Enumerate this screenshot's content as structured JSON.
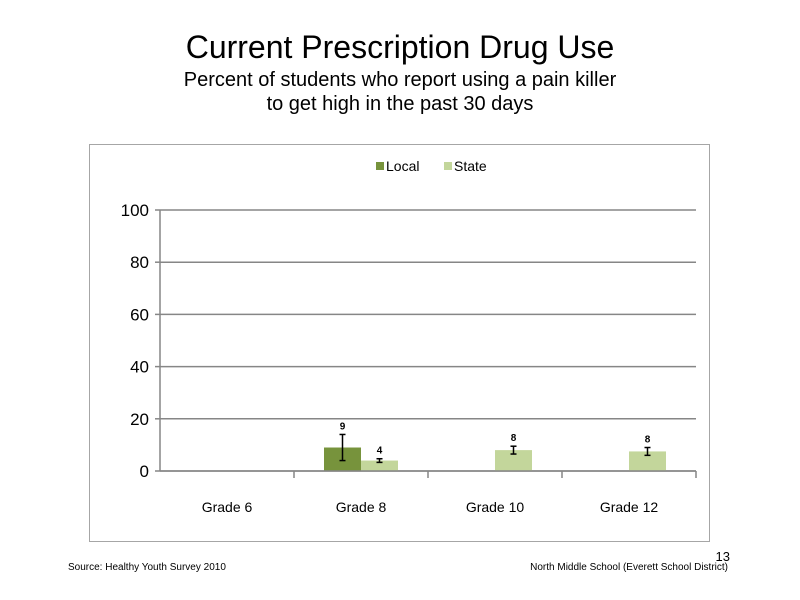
{
  "slide": {
    "title": "Current Prescription Drug Use",
    "subtitle_line1": "Percent of students who report using a pain killer",
    "subtitle_line2": "to get high in the past 30 days",
    "source": "Source: Healthy Youth Survey 2010",
    "school": "North Middle  School (Everett School District)",
    "page_number": "13"
  },
  "chart_data": {
    "type": "bar",
    "categories": [
      "Grade 6",
      "Grade 8",
      "Grade 10",
      "Grade 12"
    ],
    "series": [
      {
        "name": "Local",
        "color": "#77933c",
        "values": [
          null,
          9,
          null,
          null
        ],
        "labels": [
          null,
          "9",
          null,
          null
        ],
        "error": [
          null,
          5,
          null,
          null
        ]
      },
      {
        "name": "State",
        "color": "#c3d69b",
        "values": [
          null,
          4,
          8,
          7.5
        ],
        "labels": [
          null,
          "4",
          "8",
          "8"
        ],
        "error": [
          null,
          0.7,
          1.5,
          1.5
        ]
      }
    ],
    "ylim": [
      0,
      100
    ],
    "yticks": [
      0,
      20,
      40,
      60,
      80,
      100
    ],
    "grid": true,
    "legend": "top-center"
  }
}
